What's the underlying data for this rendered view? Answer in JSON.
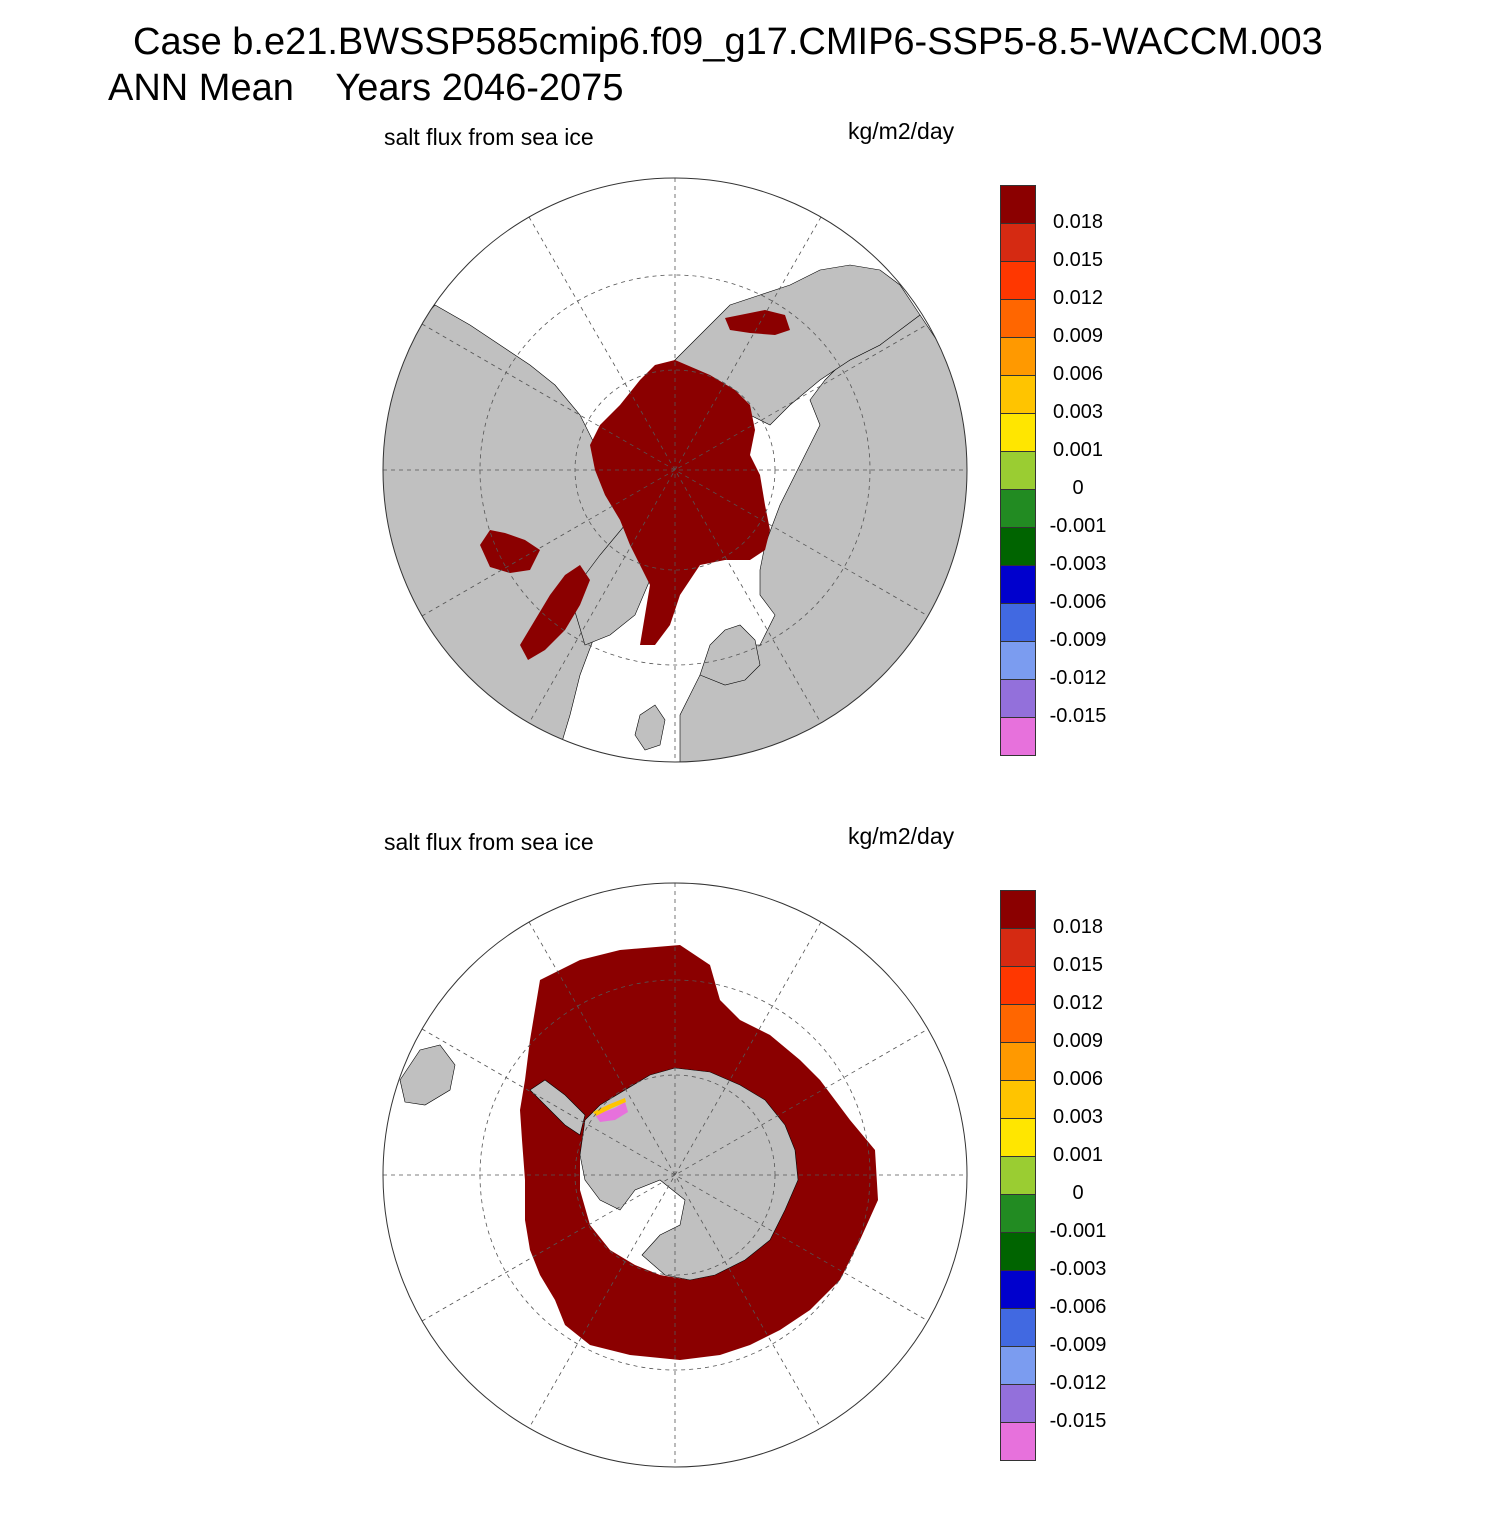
{
  "title": {
    "line1": "Case b.e21.BWSSP585cmip6.f09_g17.CMIP6-SSP5-8.5-WACCM.003",
    "line2": "ANN Mean    Years 2046-2075"
  },
  "panels": [
    {
      "variable_label": "salt flux from sea ice",
      "units_label": "kg/m2/day",
      "hemisphere": "north"
    },
    {
      "variable_label": "salt flux from sea ice",
      "units_label": "kg/m2/day",
      "hemisphere": "south"
    }
  ],
  "colorbar": {
    "labels": [
      "0.018",
      "0.015",
      "0.012",
      "0.009",
      "0.006",
      "0.003",
      "0.001",
      "0",
      "-0.001",
      "-0.003",
      "-0.006",
      "-0.009",
      "-0.012",
      "-0.015"
    ],
    "colors": [
      "#8b0000",
      "#d52a12",
      "#ff3700",
      "#ff6600",
      "#ff9900",
      "#ffc400",
      "#ffe600",
      "#9acd32",
      "#228b22",
      "#006400",
      "#0000cd",
      "#4169e1",
      "#7b9cf0",
      "#9370db",
      "#e771dc"
    ]
  },
  "colors": {
    "land": "#c0c0c0",
    "ice_flux_high": "#8b0000",
    "ocean": "#ffffff",
    "grid": "#555555"
  }
}
